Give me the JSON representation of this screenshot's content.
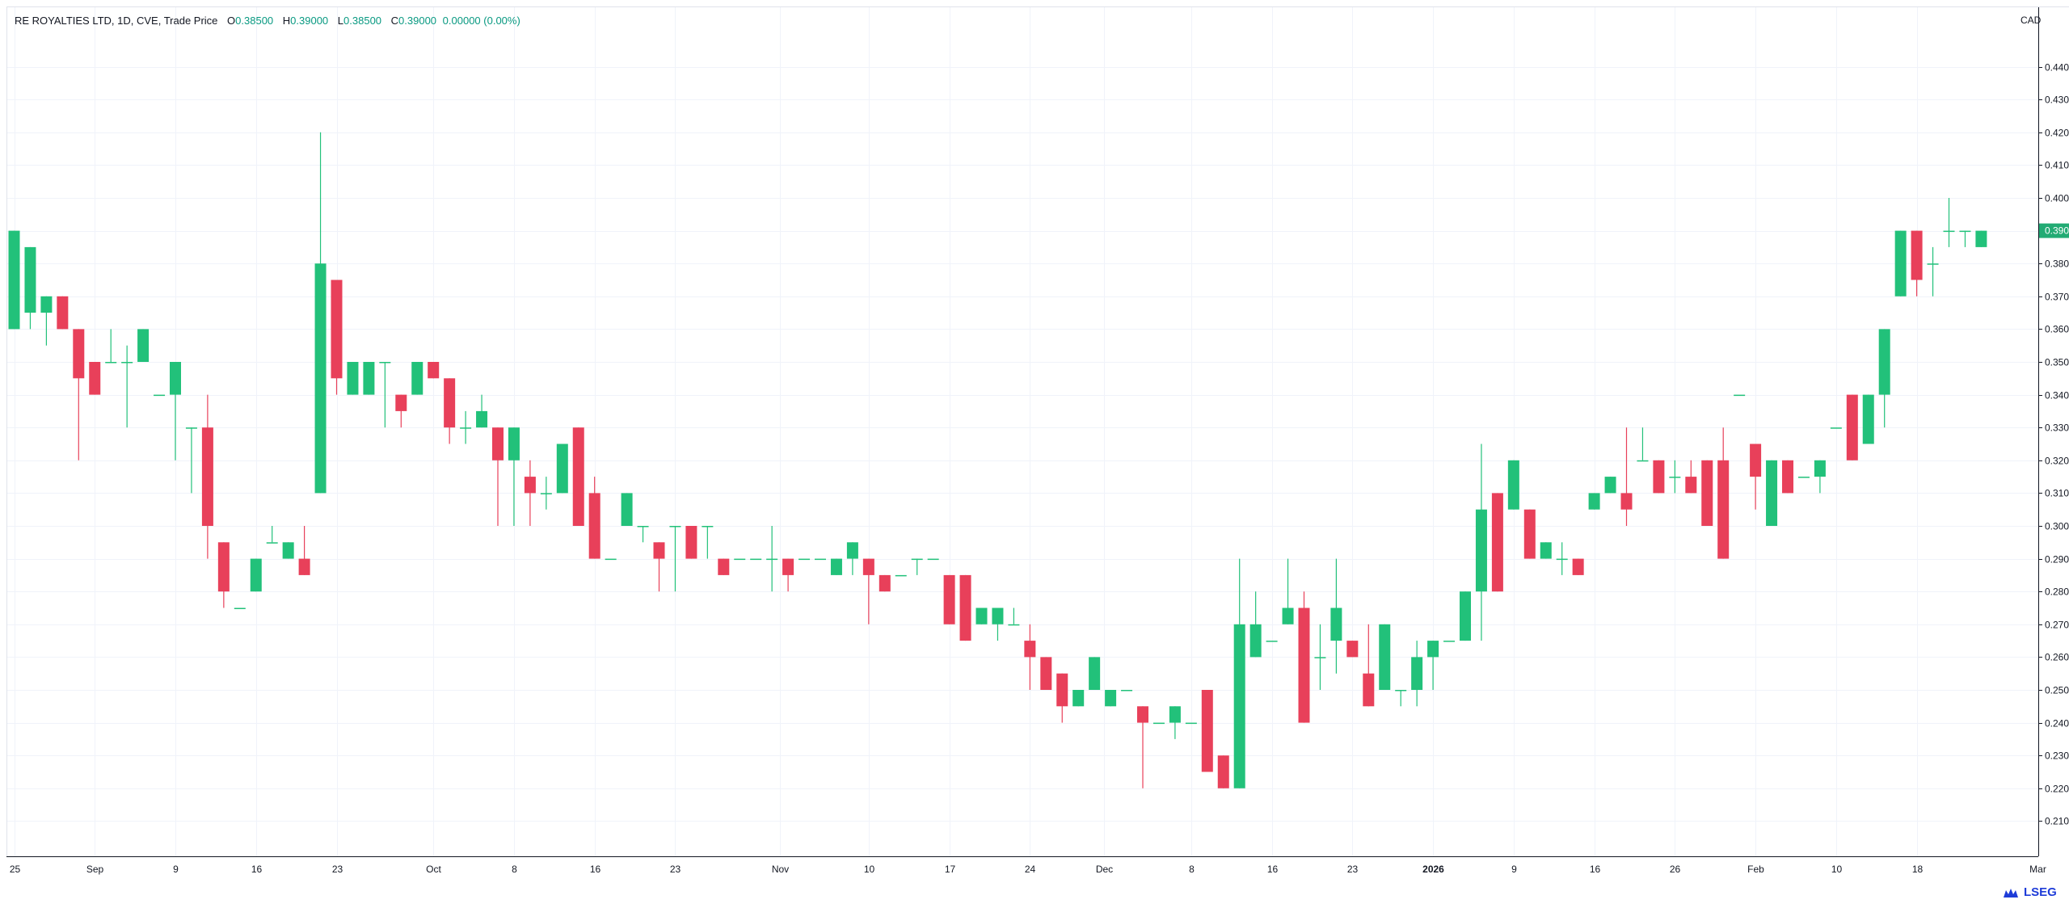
{
  "header": {
    "title": "RE ROYALTIES LTD, 1D, CVE, Trade Price",
    "o_label": "O",
    "o_value": "0.38500",
    "h_label": "H",
    "h_value": "0.39000",
    "l_label": "L",
    "l_value": "0.38500",
    "c_label": "C",
    "c_value": "0.39000",
    "change": "0.00000 (0.00%)"
  },
  "currency": "CAD",
  "logo": "LSEG",
  "colors": {
    "up": "#22c17a",
    "down": "#e8405a",
    "grid": "#f0f3fa",
    "axis": "#131722",
    "last_price_bg": "#22ab74"
  },
  "chart_data": {
    "type": "candlestick",
    "title": "RE ROYALTIES LTD, 1D, CVE, Trade Price",
    "y_axis": {
      "min": 0.2,
      "max": 0.45,
      "position": "right",
      "ticks": [
        "0.21000",
        "0.22000",
        "0.23000",
        "0.24000",
        "0.25000",
        "0.26000",
        "0.27000",
        "0.28000",
        "0.29000",
        "0.30000",
        "0.31000",
        "0.32000",
        "0.33000",
        "0.34000",
        "0.35000",
        "0.36000",
        "0.37000",
        "0.38000",
        "0.39000",
        "0.40000",
        "0.41000",
        "0.42000",
        "0.43000",
        "0.44000"
      ]
    },
    "x_axis": {
      "labels": [
        {
          "text": "25",
          "bar": 0,
          "bold": false
        },
        {
          "text": "Sep",
          "bar": 5,
          "bold": false
        },
        {
          "text": "9",
          "bar": 10,
          "bold": false
        },
        {
          "text": "16",
          "bar": 15,
          "bold": false
        },
        {
          "text": "23",
          "bar": 20,
          "bold": false
        },
        {
          "text": "Oct",
          "bar": 26,
          "bold": false
        },
        {
          "text": "8",
          "bar": 31,
          "bold": false
        },
        {
          "text": "16",
          "bar": 36,
          "bold": false
        },
        {
          "text": "23",
          "bar": 41,
          "bold": false
        },
        {
          "text": "Nov",
          "bar": 47.5,
          "bold": false
        },
        {
          "text": "10",
          "bar": 53,
          "bold": false
        },
        {
          "text": "17",
          "bar": 58,
          "bold": false
        },
        {
          "text": "24",
          "bar": 63,
          "bold": false
        },
        {
          "text": "Dec",
          "bar": 67.6,
          "bold": false
        },
        {
          "text": "8",
          "bar": 73,
          "bold": false
        },
        {
          "text": "16",
          "bar": 78,
          "bold": false
        },
        {
          "text": "23",
          "bar": 83,
          "bold": false
        },
        {
          "text": "2026",
          "bar": 88,
          "bold": true
        },
        {
          "text": "9",
          "bar": 93,
          "bold": false
        },
        {
          "text": "16",
          "bar": 98,
          "bold": false
        },
        {
          "text": "26",
          "bar": 103,
          "bold": false
        },
        {
          "text": "Feb",
          "bar": 108,
          "bold": false
        },
        {
          "text": "10",
          "bar": 113,
          "bold": false
        },
        {
          "text": "18",
          "bar": 118,
          "bold": false
        },
        {
          "text": "Mar",
          "bar": 125.5,
          "bold": false
        }
      ]
    },
    "last_price": "0.39000",
    "grid": true,
    "candles": [
      {
        "o": 0.36,
        "h": 0.39,
        "l": 0.36,
        "c": 0.39
      },
      {
        "o": 0.365,
        "h": 0.385,
        "l": 0.36,
        "c": 0.385
      },
      {
        "o": 0.365,
        "h": 0.37,
        "l": 0.355,
        "c": 0.37
      },
      {
        "o": 0.37,
        "h": 0.37,
        "l": 0.36,
        "c": 0.36
      },
      {
        "o": 0.36,
        "h": 0.36,
        "l": 0.32,
        "c": 0.345
      },
      {
        "o": 0.35,
        "h": 0.35,
        "l": 0.34,
        "c": 0.34
      },
      {
        "o": 0.35,
        "h": 0.36,
        "l": 0.35,
        "c": 0.35
      },
      {
        "o": 0.35,
        "h": 0.355,
        "l": 0.33,
        "c": 0.35
      },
      {
        "o": 0.35,
        "h": 0.36,
        "l": 0.35,
        "c": 0.36
      },
      {
        "o": 0.34,
        "h": 0.34,
        "l": 0.34,
        "c": 0.34
      },
      {
        "o": 0.34,
        "h": 0.35,
        "l": 0.32,
        "c": 0.35
      },
      {
        "o": 0.33,
        "h": 0.33,
        "l": 0.31,
        "c": 0.33
      },
      {
        "o": 0.33,
        "h": 0.34,
        "l": 0.29,
        "c": 0.3
      },
      {
        "o": 0.295,
        "h": 0.295,
        "l": 0.275,
        "c": 0.28
      },
      {
        "o": 0.275,
        "h": 0.275,
        "l": 0.275,
        "c": 0.275
      },
      {
        "o": 0.28,
        "h": 0.29,
        "l": 0.28,
        "c": 0.29
      },
      {
        "o": 0.295,
        "h": 0.3,
        "l": 0.295,
        "c": 0.295
      },
      {
        "o": 0.29,
        "h": 0.295,
        "l": 0.29,
        "c": 0.295
      },
      {
        "o": 0.29,
        "h": 0.3,
        "l": 0.285,
        "c": 0.285
      },
      {
        "o": 0.31,
        "h": 0.42,
        "l": 0.31,
        "c": 0.38
      },
      {
        "o": 0.375,
        "h": 0.375,
        "l": 0.34,
        "c": 0.345
      },
      {
        "o": 0.34,
        "h": 0.35,
        "l": 0.34,
        "c": 0.35
      },
      {
        "o": 0.34,
        "h": 0.35,
        "l": 0.34,
        "c": 0.35
      },
      {
        "o": 0.35,
        "h": 0.35,
        "l": 0.33,
        "c": 0.35
      },
      {
        "o": 0.34,
        "h": 0.34,
        "l": 0.33,
        "c": 0.335
      },
      {
        "o": 0.34,
        "h": 0.35,
        "l": 0.34,
        "c": 0.35
      },
      {
        "o": 0.35,
        "h": 0.35,
        "l": 0.345,
        "c": 0.345
      },
      {
        "o": 0.345,
        "h": 0.345,
        "l": 0.325,
        "c": 0.33
      },
      {
        "o": 0.33,
        "h": 0.335,
        "l": 0.325,
        "c": 0.33
      },
      {
        "o": 0.33,
        "h": 0.34,
        "l": 0.33,
        "c": 0.335
      },
      {
        "o": 0.33,
        "h": 0.33,
        "l": 0.3,
        "c": 0.32
      },
      {
        "o": 0.32,
        "h": 0.33,
        "l": 0.3,
        "c": 0.33
      },
      {
        "o": 0.315,
        "h": 0.32,
        "l": 0.3,
        "c": 0.31
      },
      {
        "o": 0.31,
        "h": 0.315,
        "l": 0.305,
        "c": 0.31
      },
      {
        "o": 0.31,
        "h": 0.325,
        "l": 0.31,
        "c": 0.325
      },
      {
        "o": 0.33,
        "h": 0.33,
        "l": 0.3,
        "c": 0.3
      },
      {
        "o": 0.31,
        "h": 0.315,
        "l": 0.29,
        "c": 0.29
      },
      {
        "o": 0.29,
        "h": 0.29,
        "l": 0.29,
        "c": 0.29
      },
      {
        "o": 0.3,
        "h": 0.31,
        "l": 0.3,
        "c": 0.31
      },
      {
        "o": 0.3,
        "h": 0.3,
        "l": 0.295,
        "c": 0.3
      },
      {
        "o": 0.295,
        "h": 0.295,
        "l": 0.28,
        "c": 0.29
      },
      {
        "o": 0.3,
        "h": 0.3,
        "l": 0.28,
        "c": 0.3
      },
      {
        "o": 0.3,
        "h": 0.3,
        "l": 0.29,
        "c": 0.29
      },
      {
        "o": 0.3,
        "h": 0.3,
        "l": 0.29,
        "c": 0.3
      },
      {
        "o": 0.29,
        "h": 0.29,
        "l": 0.285,
        "c": 0.285
      },
      {
        "o": 0.29,
        "h": 0.29,
        "l": 0.29,
        "c": 0.29
      },
      {
        "o": 0.29,
        "h": 0.29,
        "l": 0.29,
        "c": 0.29
      },
      {
        "o": 0.29,
        "h": 0.3,
        "l": 0.28,
        "c": 0.29
      },
      {
        "o": 0.29,
        "h": 0.29,
        "l": 0.28,
        "c": 0.285
      },
      {
        "o": 0.29,
        "h": 0.29,
        "l": 0.29,
        "c": 0.29
      },
      {
        "o": 0.29,
        "h": 0.29,
        "l": 0.29,
        "c": 0.29
      },
      {
        "o": 0.285,
        "h": 0.29,
        "l": 0.285,
        "c": 0.29
      },
      {
        "o": 0.29,
        "h": 0.295,
        "l": 0.285,
        "c": 0.295
      },
      {
        "o": 0.29,
        "h": 0.29,
        "l": 0.27,
        "c": 0.285
      },
      {
        "o": 0.285,
        "h": 0.285,
        "l": 0.28,
        "c": 0.28
      },
      {
        "o": 0.285,
        "h": 0.285,
        "l": 0.285,
        "c": 0.285
      },
      {
        "o": 0.29,
        "h": 0.29,
        "l": 0.285,
        "c": 0.29
      },
      {
        "o": 0.29,
        "h": 0.29,
        "l": 0.29,
        "c": 0.29
      },
      {
        "o": 0.285,
        "h": 0.285,
        "l": 0.27,
        "c": 0.27
      },
      {
        "o": 0.285,
        "h": 0.285,
        "l": 0.265,
        "c": 0.265
      },
      {
        "o": 0.27,
        "h": 0.275,
        "l": 0.27,
        "c": 0.275
      },
      {
        "o": 0.27,
        "h": 0.275,
        "l": 0.265,
        "c": 0.275
      },
      {
        "o": 0.27,
        "h": 0.275,
        "l": 0.27,
        "c": 0.27
      },
      {
        "o": 0.265,
        "h": 0.27,
        "l": 0.25,
        "c": 0.26
      },
      {
        "o": 0.26,
        "h": 0.26,
        "l": 0.25,
        "c": 0.25
      },
      {
        "o": 0.255,
        "h": 0.255,
        "l": 0.24,
        "c": 0.245
      },
      {
        "o": 0.245,
        "h": 0.25,
        "l": 0.245,
        "c": 0.25
      },
      {
        "o": 0.25,
        "h": 0.26,
        "l": 0.25,
        "c": 0.26
      },
      {
        "o": 0.245,
        "h": 0.25,
        "l": 0.245,
        "c": 0.25
      },
      {
        "o": 0.25,
        "h": 0.25,
        "l": 0.25,
        "c": 0.25
      },
      {
        "o": 0.245,
        "h": 0.245,
        "l": 0.22,
        "c": 0.24
      },
      {
        "o": 0.24,
        "h": 0.24,
        "l": 0.24,
        "c": 0.24
      },
      {
        "o": 0.24,
        "h": 0.245,
        "l": 0.235,
        "c": 0.245
      },
      {
        "o": 0.24,
        "h": 0.24,
        "l": 0.24,
        "c": 0.24
      },
      {
        "o": 0.25,
        "h": 0.25,
        "l": 0.225,
        "c": 0.225
      },
      {
        "o": 0.23,
        "h": 0.23,
        "l": 0.22,
        "c": 0.22
      },
      {
        "o": 0.22,
        "h": 0.29,
        "l": 0.22,
        "c": 0.27
      },
      {
        "o": 0.26,
        "h": 0.28,
        "l": 0.26,
        "c": 0.27
      },
      {
        "o": 0.265,
        "h": 0.265,
        "l": 0.265,
        "c": 0.265
      },
      {
        "o": 0.27,
        "h": 0.29,
        "l": 0.27,
        "c": 0.275
      },
      {
        "o": 0.275,
        "h": 0.28,
        "l": 0.24,
        "c": 0.24
      },
      {
        "o": 0.26,
        "h": 0.27,
        "l": 0.25,
        "c": 0.26
      },
      {
        "o": 0.265,
        "h": 0.29,
        "l": 0.255,
        "c": 0.275
      },
      {
        "o": 0.265,
        "h": 0.265,
        "l": 0.26,
        "c": 0.26
      },
      {
        "o": 0.255,
        "h": 0.27,
        "l": 0.245,
        "c": 0.245
      },
      {
        "o": 0.25,
        "h": 0.27,
        "l": 0.25,
        "c": 0.27
      },
      {
        "o": 0.25,
        "h": 0.25,
        "l": 0.245,
        "c": 0.25
      },
      {
        "o": 0.25,
        "h": 0.265,
        "l": 0.245,
        "c": 0.26
      },
      {
        "o": 0.26,
        "h": 0.265,
        "l": 0.25,
        "c": 0.265
      },
      {
        "o": 0.265,
        "h": 0.265,
        "l": 0.265,
        "c": 0.265
      },
      {
        "o": 0.265,
        "h": 0.28,
        "l": 0.265,
        "c": 0.28
      },
      {
        "o": 0.28,
        "h": 0.325,
        "l": 0.265,
        "c": 0.305
      },
      {
        "o": 0.31,
        "h": 0.31,
        "l": 0.28,
        "c": 0.28
      },
      {
        "o": 0.305,
        "h": 0.32,
        "l": 0.305,
        "c": 0.32
      },
      {
        "o": 0.305,
        "h": 0.305,
        "l": 0.29,
        "c": 0.29
      },
      {
        "o": 0.29,
        "h": 0.295,
        "l": 0.29,
        "c": 0.295
      },
      {
        "o": 0.29,
        "h": 0.295,
        "l": 0.285,
        "c": 0.29
      },
      {
        "o": 0.29,
        "h": 0.29,
        "l": 0.285,
        "c": 0.285
      },
      {
        "o": 0.305,
        "h": 0.31,
        "l": 0.305,
        "c": 0.31
      },
      {
        "o": 0.31,
        "h": 0.315,
        "l": 0.31,
        "c": 0.315
      },
      {
        "o": 0.31,
        "h": 0.33,
        "l": 0.3,
        "c": 0.305
      },
      {
        "o": 0.32,
        "h": 0.33,
        "l": 0.32,
        "c": 0.32
      },
      {
        "o": 0.32,
        "h": 0.32,
        "l": 0.31,
        "c": 0.31
      },
      {
        "o": 0.315,
        "h": 0.32,
        "l": 0.31,
        "c": 0.315
      },
      {
        "o": 0.315,
        "h": 0.32,
        "l": 0.31,
        "c": 0.31
      },
      {
        "o": 0.32,
        "h": 0.32,
        "l": 0.3,
        "c": 0.3
      },
      {
        "o": 0.32,
        "h": 0.33,
        "l": 0.29,
        "c": 0.29
      },
      {
        "o": 0.34,
        "h": 0.34,
        "l": 0.34,
        "c": 0.34
      },
      {
        "o": 0.325,
        "h": 0.325,
        "l": 0.305,
        "c": 0.315
      },
      {
        "o": 0.3,
        "h": 0.32,
        "l": 0.3,
        "c": 0.32
      },
      {
        "o": 0.32,
        "h": 0.32,
        "l": 0.31,
        "c": 0.31
      },
      {
        "o": 0.315,
        "h": 0.315,
        "l": 0.315,
        "c": 0.315
      },
      {
        "o": 0.315,
        "h": 0.32,
        "l": 0.31,
        "c": 0.32
      },
      {
        "o": 0.33,
        "h": 0.33,
        "l": 0.33,
        "c": 0.33
      },
      {
        "o": 0.34,
        "h": 0.34,
        "l": 0.32,
        "c": 0.32
      },
      {
        "o": 0.325,
        "h": 0.34,
        "l": 0.325,
        "c": 0.34
      },
      {
        "o": 0.34,
        "h": 0.36,
        "l": 0.33,
        "c": 0.36
      },
      {
        "o": 0.37,
        "h": 0.39,
        "l": 0.37,
        "c": 0.39
      },
      {
        "o": 0.39,
        "h": 0.39,
        "l": 0.37,
        "c": 0.375
      },
      {
        "o": 0.38,
        "h": 0.385,
        "l": 0.37,
        "c": 0.38
      },
      {
        "o": 0.39,
        "h": 0.4,
        "l": 0.385,
        "c": 0.39
      },
      {
        "o": 0.39,
        "h": 0.39,
        "l": 0.385,
        "c": 0.39
      },
      {
        "o": 0.385,
        "h": 0.39,
        "l": 0.385,
        "c": 0.39
      }
    ]
  }
}
